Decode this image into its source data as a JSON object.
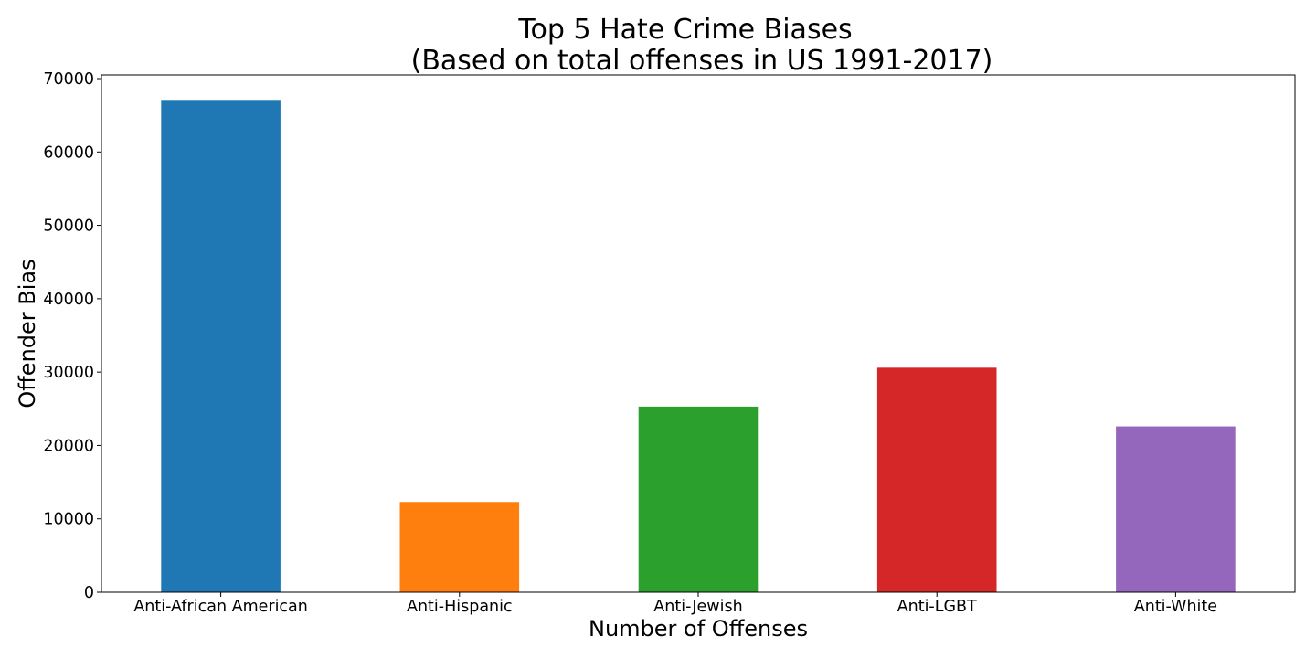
{
  "chart_data": {
    "type": "bar",
    "title_lines": [
      "Top 5 Hate Crime Biases",
      "(Based on total offenses in US 1991-2017)"
    ],
    "xlabel": "Number of Offenses",
    "ylabel": "Offender Bias",
    "categories": [
      "Anti-African American",
      "Anti-Hispanic",
      "Anti-Jewish",
      "Anti-LGBT",
      "Anti-White"
    ],
    "values": [
      67100,
      12300,
      25300,
      30600,
      22600
    ],
    "colors": [
      "#1f77b4",
      "#ff7f0e",
      "#2ca02c",
      "#d62728",
      "#9467bd"
    ],
    "ylim": [
      0,
      70500
    ],
    "yticks": [
      0,
      10000,
      20000,
      30000,
      40000,
      50000,
      60000,
      70000
    ],
    "grid": false,
    "legend": "none"
  }
}
